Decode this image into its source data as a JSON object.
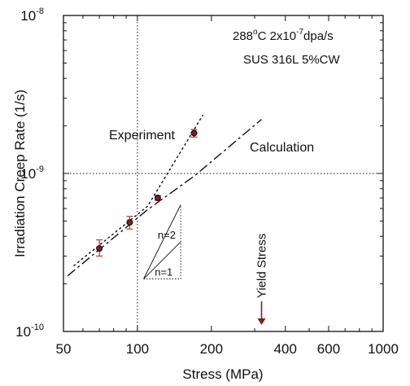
{
  "chart_data": {
    "type": "line",
    "xscale": "log",
    "yscale": "log",
    "xlim": [
      50,
      1000
    ],
    "ylim": [
      1e-10,
      1e-08
    ],
    "xlabel": "Stress (MPa)",
    "ylabel": "Irradiation Creep Rate  (1/s)",
    "x_ticks": [
      {
        "value": 50,
        "label": "50"
      },
      {
        "value": 100,
        "label": "100"
      },
      {
        "value": 200,
        "label": "200"
      },
      {
        "value": 400,
        "label": "400"
      },
      {
        "value": 600,
        "label": "600"
      },
      {
        "value": 1000,
        "label": "1000"
      }
    ],
    "y_ticks": [
      {
        "value": 1e-10,
        "base": "10",
        "exp": "-10"
      },
      {
        "value": 1e-09,
        "base": "10",
        "exp": "-9"
      },
      {
        "value": 1e-08,
        "base": "10",
        "exp": "-8"
      }
    ],
    "conditions_line1": {
      "a": "288",
      "b": "o",
      "c": "C  2x10",
      "d": "-7",
      "e": "dpa/s"
    },
    "conditions_line2": "SUS 316L  5%CW",
    "reference_lines": {
      "x": 100,
      "y": 1e-09
    },
    "experiment_points": [
      {
        "x": 70,
        "y": 3.35e-10,
        "err_low": 3e-10,
        "err_high": 3.8e-10
      },
      {
        "x": 93,
        "y": 4.9e-10,
        "err_low": 4.45e-10,
        "err_high": 5.35e-10
      },
      {
        "x": 121,
        "y": 7e-10,
        "err_low": 6.75e-10,
        "err_high": 7.25e-10
      },
      {
        "x": 170,
        "y": 1.8e-09,
        "err_low": 1.7e-09,
        "err_high": 1.9e-09
      }
    ],
    "series": [
      {
        "name": "Experiment",
        "x": [
          55,
          110,
          185
        ],
        "y": [
          2.6e-10,
          6.2e-10,
          2.35e-09
        ]
      },
      {
        "name": "Calculation",
        "x": [
          52,
          110,
          170,
          320
        ],
        "y": [
          2.25e-10,
          5.9e-10,
          9.6e-10,
          2.2e-09
        ]
      }
    ],
    "slope_triangle": {
      "x_start": 106,
      "x_end": 150,
      "y_base": 2.15e-10,
      "labels": [
        "n=2",
        "n=1"
      ]
    },
    "yield_annotation": {
      "label": "Yield Stress",
      "x": 320,
      "y_from": 1.55e-10,
      "y_to": 1.1e-10
    },
    "colors": {
      "errorbar": "#c0392b",
      "marker": "#111111",
      "marker_fill": "#8b1a1a",
      "arrow": "#8b1a1a"
    }
  }
}
